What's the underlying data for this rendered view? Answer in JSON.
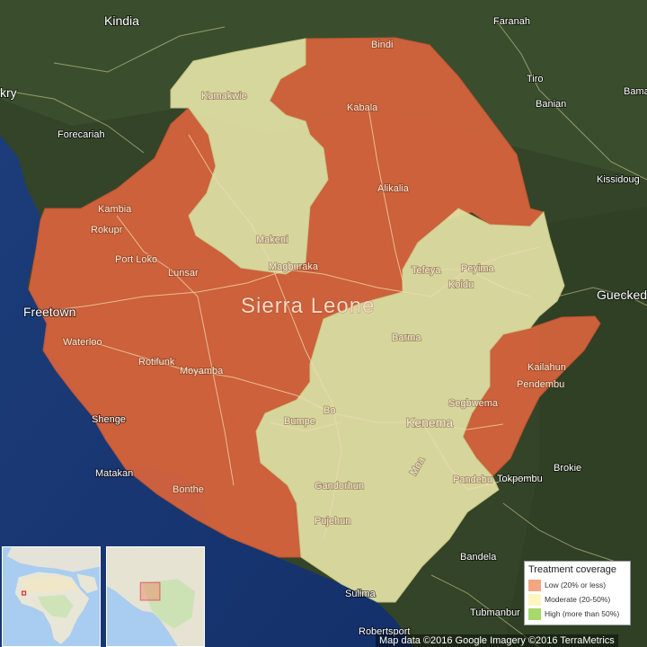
{
  "country_label": "Sierra Leone",
  "places": {
    "kindia": "Kindia",
    "faranah": "Faranah",
    "kry": "kry",
    "tiro": "Tiro",
    "banian": "Banian",
    "bama": "Bama",
    "forecariah": "Forecariah",
    "kissidougou": "Kissidoug",
    "bindi": "Bindi",
    "kabala": "Kabala",
    "kamakwie": "Kamakwie",
    "alikalia": "Alikalia",
    "kambia": "Kambia",
    "rokupr": "Rokupr",
    "makeni": "Makeni",
    "magburaka": "Magburaka",
    "port_loko": "Port Loko",
    "lunsar": "Lunsar",
    "tefeya": "Tefeya",
    "peyima": "Peyima",
    "koidu": "Koidu",
    "gueckedou": "Gueckedo",
    "freetown": "Freetown",
    "waterloo": "Waterloo",
    "barma": "Barma",
    "rotifunk": "Rotifunk",
    "moyamba": "Moyamba",
    "kailahun": "Kailahun",
    "pendembu": "Pendembu",
    "segbwema": "Segbwema",
    "shenge": "Shenge",
    "bumpe": "Bumpe",
    "bo": "Bo",
    "kenema": "Kenema",
    "moa": "Moa",
    "matakan": "Matakan",
    "bonthe": "Bonthe",
    "brokie": "Brokie",
    "pandebu": "Pandebu",
    "tokpombu": "Tokpombu",
    "gandorhun": "Gandorhun",
    "pujehun": "Pujehun",
    "bandela": "Bandela",
    "sulima": "Sulima",
    "tubmanburg": "Tubmanbur",
    "robertsport": "Robertsport"
  },
  "legend": {
    "title": "Treatment coverage",
    "items": [
      {
        "label": "Low (20% or less)",
        "color": "#f4a582"
      },
      {
        "label": "Moderate (20-50%)",
        "color": "#fdf6c3"
      },
      {
        "label": "High (more than 50%)",
        "color": "#a6d96a"
      }
    ]
  },
  "regions": {
    "low_color": "#d9643d",
    "moderate_color": "#e4e3a6"
  },
  "attribution": "Map data ©2016 Google  Imagery ©2016 TerraMetrics"
}
